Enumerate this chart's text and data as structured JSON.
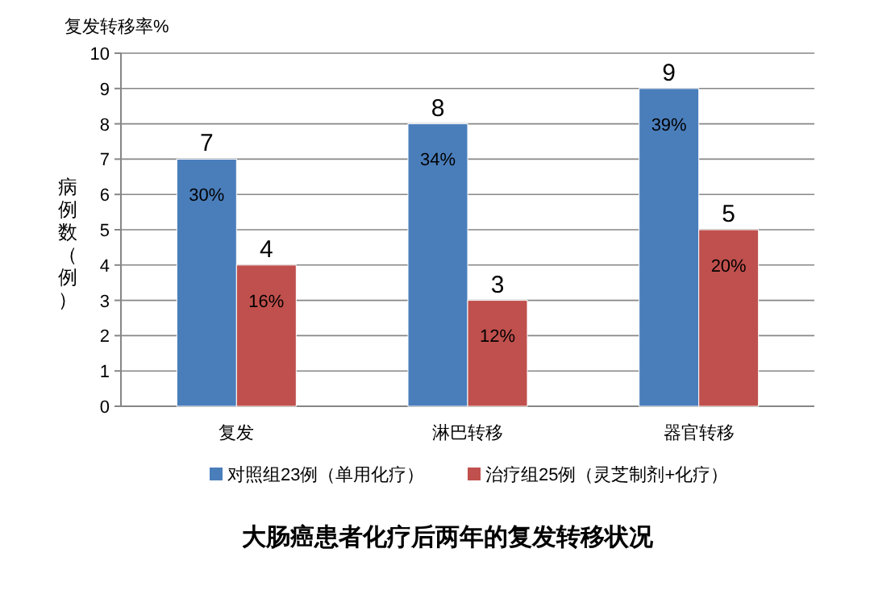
{
  "chart_data": {
    "type": "bar",
    "title": "大肠癌患者化疗后两年的复发转移状况",
    "ylabel": "病例数（例）",
    "categories": [
      "复发",
      "淋巴转移",
      "器官转移"
    ],
    "series": [
      {
        "name": "对照组23例（单用化疗）",
        "color": "#4a7ebb",
        "values": [
          7,
          8,
          9
        ]
      },
      {
        "name": "治疗组25例（灵芝制剂+化疗）",
        "color": "#c0504d",
        "values": [
          4,
          3,
          5
        ]
      }
    ],
    "ylim": [
      0,
      10
    ],
    "yticks": [
      0,
      1,
      2,
      3,
      4,
      5,
      6,
      7,
      8,
      9,
      10
    ],
    "grid": "y",
    "legend": "bottom",
    "data_labels": true,
    "annotations": [
      "复发转移率%",
      {
        "text": "30%",
        "x": "复发",
        "y": 6
      },
      {
        "text": "16%",
        "x": "复发",
        "y": 3
      },
      {
        "text": "34%",
        "x": "淋巴转移",
        "y": 7
      },
      {
        "text": "12%",
        "x": "淋巴转移",
        "y": 2
      },
      {
        "text": "39%",
        "x": "器官转移",
        "y": 8
      },
      {
        "text": "20%",
        "x": "器官转移",
        "y": 4
      }
    ]
  }
}
